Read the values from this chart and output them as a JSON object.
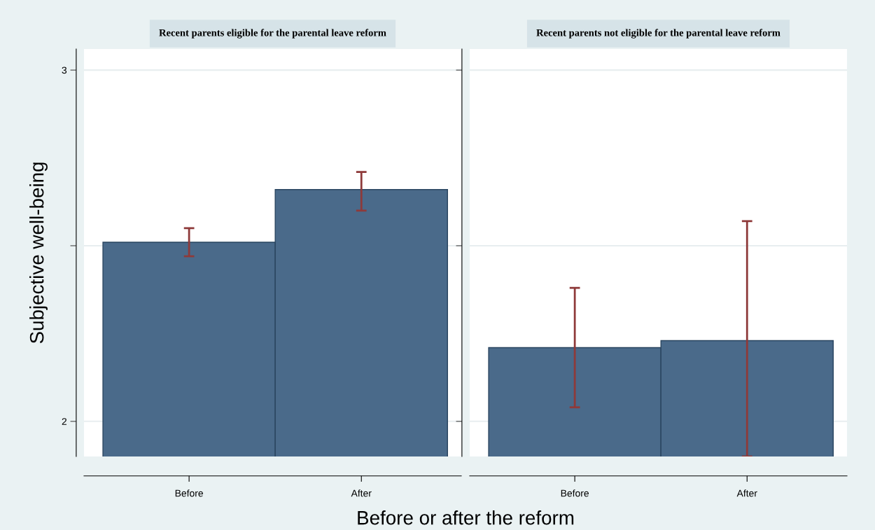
{
  "chart_data": [
    {
      "type": "bar",
      "title": "Recent parents eligible for the parental leave reform",
      "ylabel": "Subjective well-being",
      "xlabel": "Before or after the reform",
      "categories": [
        "Before",
        "After"
      ],
      "values": [
        2.51,
        2.66
      ],
      "errors": [
        [
          2.47,
          2.55
        ],
        [
          2.6,
          2.71
        ]
      ],
      "color": "#4a6a8a",
      "ylim": [
        1.9,
        3.06
      ],
      "yticks": [
        2,
        {
          "value": 2.5,
          "label": null
        },
        3
      ],
      "grid": "y",
      "legend": false
    },
    {
      "type": "bar",
      "title": "Recent parents not eligible for the parental leave reform",
      "categories": [
        "Before",
        "After"
      ],
      "values": [
        2.21,
        2.23
      ],
      "errors": [
        [
          2.04,
          2.38
        ],
        [
          1.9,
          2.57
        ]
      ],
      "color": "#4a6a8a",
      "ylim": [
        1.9,
        3.06
      ],
      "yticks": [
        2,
        {
          "value": 2.5,
          "label": null
        },
        3
      ],
      "grid": "y",
      "legend": false,
      "tick_labels": "x"
    }
  ]
}
